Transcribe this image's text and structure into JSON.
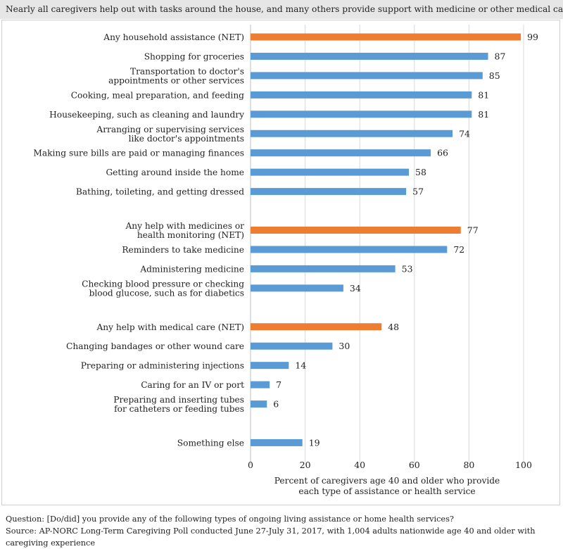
{
  "title": "Nearly all caregivers help out with tasks around the house, and many others provide support with medicine or other medical care.",
  "chart_data": {
    "type": "bar",
    "orientation": "horizontal",
    "categories": [
      [
        "Any household assistance (NET)"
      ],
      [
        "Shopping for groceries"
      ],
      [
        "Transportation to doctor's",
        "appointments or other services"
      ],
      [
        "Cooking, meal preparation, and feeding"
      ],
      [
        "Housekeeping, such as cleaning and laundry"
      ],
      [
        "Arranging or supervising services",
        "like doctor's appointments"
      ],
      [
        "Making sure bills are paid or managing finances"
      ],
      [
        "Getting around inside the home"
      ],
      [
        "Bathing, toileting, and getting dressed"
      ],
      [
        "Any help with medicines or",
        "health monitoring (NET)"
      ],
      [
        "Reminders to take medicine"
      ],
      [
        "Administering medicine"
      ],
      [
        "Checking blood pressure or checking",
        "blood glucose, such as for diabetics"
      ],
      [
        "Any help with medical care (NET)"
      ],
      [
        "Changing bandages or other wound care"
      ],
      [
        "Preparing or administering injections"
      ],
      [
        "Caring for an IV or port"
      ],
      [
        "Preparing and inserting tubes",
        "for catheters or feeding tubes"
      ],
      [
        "Something else"
      ]
    ],
    "values": [
      99,
      87,
      85,
      81,
      81,
      74,
      66,
      58,
      57,
      77,
      72,
      53,
      34,
      48,
      30,
      14,
      7,
      6,
      19
    ],
    "is_net": [
      true,
      false,
      false,
      false,
      false,
      false,
      false,
      false,
      false,
      true,
      false,
      false,
      false,
      true,
      false,
      false,
      false,
      false,
      false
    ],
    "groups": [
      [
        0,
        8
      ],
      [
        9,
        12
      ],
      [
        13,
        17
      ],
      [
        18,
        18
      ]
    ],
    "xlim": [
      0,
      100
    ],
    "xticks": [
      0,
      20,
      40,
      60,
      80,
      100
    ],
    "xlabel": [
      "Percent of caregivers age 40 and older who provide",
      "each type of assistance or health service"
    ],
    "grid": true,
    "colors": {
      "net": "#ed7d31",
      "item": "#5b9bd5",
      "grid": "#d9d9d9"
    }
  },
  "footnotes": {
    "question": "Question: [Do/did] you provide any of the following types of ongoing living assistance or home health services?",
    "source": "Source: AP-NORC Long-Term Caregiving Poll conducted June 27-July 31, 2017, with 1,004 adults nationwide age 40 and older with caregiving experience"
  }
}
